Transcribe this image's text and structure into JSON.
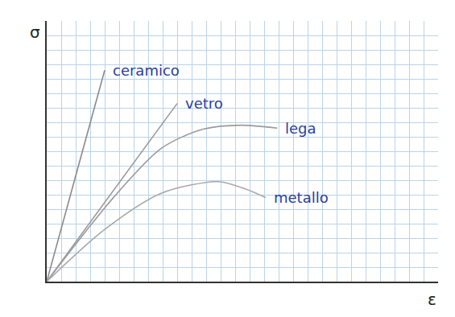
{
  "chart_data": {
    "type": "line",
    "x_label": "ε",
    "y_label": "σ",
    "xlim": [
      0,
      27
    ],
    "ylim": [
      0,
      18
    ],
    "xticks": [
      0,
      1,
      2,
      3,
      4,
      5,
      6,
      7,
      8,
      9,
      10,
      11,
      12,
      13,
      14,
      15,
      16,
      17,
      18,
      19,
      20,
      21,
      22,
      23,
      24,
      25,
      26,
      27
    ],
    "yticks": [
      0,
      1,
      2,
      3,
      4,
      5,
      6,
      7,
      8,
      9,
      10,
      11,
      12,
      13,
      14,
      15,
      16,
      17,
      18
    ],
    "grid": true,
    "tick_labels": false,
    "series": [
      {
        "name": "ceramico",
        "color": "#8a8a8a",
        "x": [
          0,
          4
        ],
        "values": [
          0,
          14.6
        ]
      },
      {
        "name": "vetro",
        "color": "#9a9a9a",
        "x": [
          0,
          9
        ],
        "values": [
          0,
          12.3
        ]
      },
      {
        "name": "lega",
        "color": "#9a9a9a",
        "x": [
          0,
          4.6,
          7.9,
          10.7,
          13.4,
          15.9
        ],
        "values": [
          0,
          5.8,
          9.2,
          10.5,
          10.8,
          10.6
        ]
      },
      {
        "name": "metallo",
        "color": "#a8a8a8",
        "x": [
          0,
          4,
          7.9,
          11.8,
          13.7,
          15.1
        ],
        "values": [
          0,
          3.6,
          6.1,
          6.9,
          6.4,
          5.8
        ]
      }
    ]
  }
}
